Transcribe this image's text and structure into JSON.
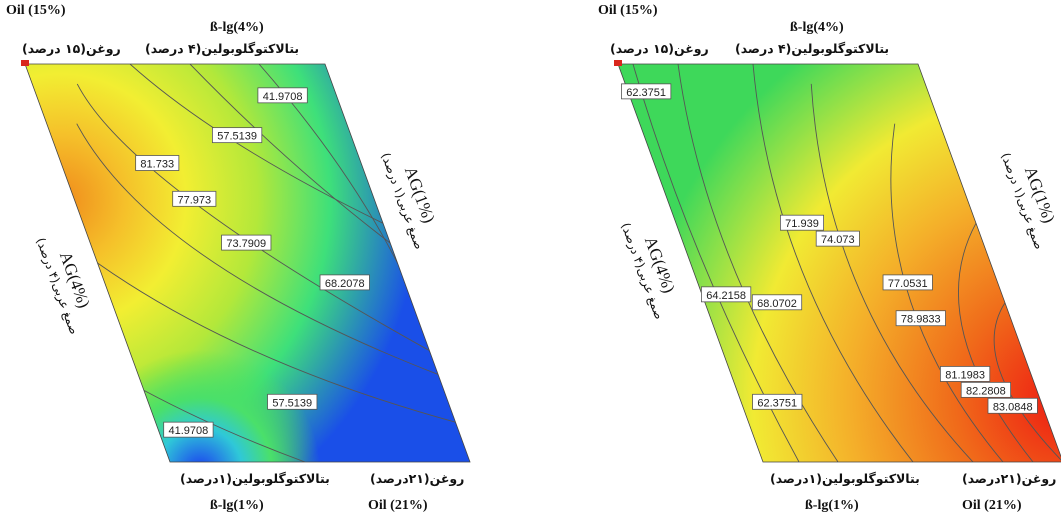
{
  "chart_data": [
    {
      "type": "contour",
      "colormap": "blue-green-yellow-orange-red",
      "vertices": {
        "top_left": {
          "en": "Oil (15%)",
          "fa": "روغن(۱۵ درصد)"
        },
        "top_right": {
          "en": "ß-lg(4%)",
          "fa": "بتالاکتوگلوبولین(۴ درصد)"
        },
        "bottom_left": {
          "en": "ß-lg(1%)",
          "fa": "بتالاکتوگلوبولین(۱درصد)"
        },
        "bottom_right": {
          "en": "Oil (21%)",
          "fa": "روغن(۲۱درصد)"
        }
      },
      "left_axis": {
        "en": "AG(4%)",
        "fa": "صمغ عربی(۴ درصد)"
      },
      "right_axis": {
        "en": "AG(1%)",
        "fa": "صمغ عربی(۱ درصد)"
      },
      "contour_labels": [
        {
          "value": "41.9708",
          "u": 0.82,
          "v": 0.08
        },
        {
          "value": "57.5139",
          "u": 0.62,
          "v": 0.18
        },
        {
          "value": "81.733",
          "u": 0.32,
          "v": 0.25
        },
        {
          "value": "77.973",
          "u": 0.4,
          "v": 0.34
        },
        {
          "value": "73.7909",
          "u": 0.52,
          "v": 0.45
        },
        {
          "value": "68.2078",
          "u": 0.8,
          "v": 0.55
        },
        {
          "value": "57.5139",
          "u": 0.48,
          "v": 0.85
        },
        {
          "value": "41.9708",
          "u": 0.1,
          "v": 0.92
        }
      ],
      "intensity_peak": {
        "u": 0.1,
        "v": 0.25
      }
    },
    {
      "type": "contour",
      "colormap": "green-yellow-orange-red",
      "vertices": {
        "top_left": {
          "en": "Oil (15%)",
          "fa": "روغن(۱۵ درصد)"
        },
        "top_right": {
          "en": "ß-lg(4%)",
          "fa": "بتالاکتوگلوبولین(۴ درصد)"
        },
        "bottom_left": {
          "en": "ß-lg(1%)",
          "fa": "بتالاکتوگلوبولین(۱درصد)"
        },
        "bottom_right": {
          "en": "Oil (21%)",
          "fa": "روغن(۲۱درصد)"
        }
      },
      "left_axis": {
        "en": "AG(4%)",
        "fa": "صمغ عربی(۴ درصد)"
      },
      "right_axis": {
        "en": "AG(1%)",
        "fa": "صمغ عربی(۱ درصد)"
      },
      "contour_labels": [
        {
          "value": "62.3751",
          "u": 0.06,
          "v": 0.07
        },
        {
          "value": "71.939",
          "u": 0.42,
          "v": 0.4
        },
        {
          "value": "74.073",
          "u": 0.52,
          "v": 0.44
        },
        {
          "value": "64.2158",
          "u": 0.08,
          "v": 0.58
        },
        {
          "value": "68.0702",
          "u": 0.24,
          "v": 0.6
        },
        {
          "value": "77.0531",
          "u": 0.7,
          "v": 0.55
        },
        {
          "value": "78.9833",
          "u": 0.7,
          "v": 0.64
        },
        {
          "value": "62.3751",
          "u": 0.12,
          "v": 0.85
        },
        {
          "value": "81.1983",
          "u": 0.78,
          "v": 0.78
        },
        {
          "value": "82.2808",
          "u": 0.83,
          "v": 0.82
        },
        {
          "value": "83.0848",
          "u": 0.9,
          "v": 0.86
        }
      ],
      "intensity_peak": {
        "u": 1.0,
        "v": 0.85
      }
    }
  ]
}
